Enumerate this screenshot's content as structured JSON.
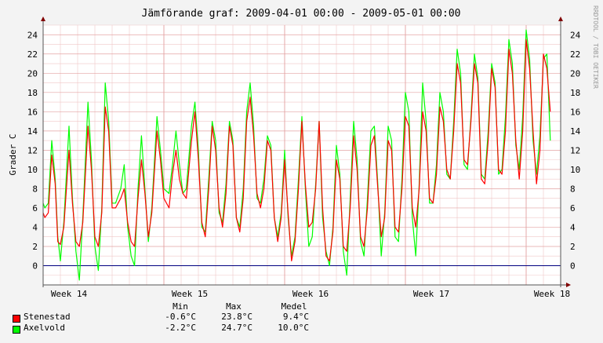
{
  "chart_data": {
    "type": "line",
    "title": "Jämförande graf: 2009-04-01 00:00 - 2009-05-01 00:00",
    "ylabel": "Grader C",
    "xlabel": "",
    "watermark": "RRDTOOL / TOBI OETIKER",
    "ylim": [
      -2,
      25
    ],
    "yticks": [
      0,
      2,
      4,
      6,
      8,
      10,
      12,
      14,
      16,
      18,
      20,
      22,
      24
    ],
    "xlim": [
      0,
      30
    ],
    "xticks": [
      {
        "day": 1.5,
        "label": "Week 14"
      },
      {
        "day": 8.5,
        "label": "Week 15"
      },
      {
        "day": 15.5,
        "label": "Week 16"
      },
      {
        "day": 22.5,
        "label": "Week 17"
      },
      {
        "day": 29.5,
        "label": "Week 18"
      }
    ],
    "day_gridlines": [
      0,
      7,
      14,
      21,
      28
    ],
    "grid": true,
    "series": [
      {
        "name": "Stenestad",
        "color": "#ff0000",
        "points": [
          [
            0,
            5.5
          ],
          [
            0.1,
            5.0
          ],
          [
            0.3,
            5.5
          ],
          [
            0.5,
            11.5
          ],
          [
            0.7,
            8.5
          ],
          [
            0.85,
            2.5
          ],
          [
            1.0,
            2.2
          ],
          [
            1.2,
            4.0
          ],
          [
            1.5,
            12.0
          ],
          [
            1.7,
            6.5
          ],
          [
            1.9,
            2.5
          ],
          [
            2.1,
            2.0
          ],
          [
            2.3,
            4.5
          ],
          [
            2.6,
            14.5
          ],
          [
            2.8,
            10.0
          ],
          [
            3.0,
            3.0
          ],
          [
            3.2,
            2.0
          ],
          [
            3.4,
            5.5
          ],
          [
            3.6,
            16.5
          ],
          [
            3.8,
            14.0
          ],
          [
            4.0,
            6.0
          ],
          [
            4.2,
            6.0
          ],
          [
            4.5,
            7.0
          ],
          [
            4.7,
            8.0
          ],
          [
            4.9,
            4.5
          ],
          [
            5.1,
            2.5
          ],
          [
            5.3,
            2.0
          ],
          [
            5.5,
            7.0
          ],
          [
            5.7,
            11.0
          ],
          [
            5.9,
            7.5
          ],
          [
            6.1,
            3.0
          ],
          [
            6.3,
            5.5
          ],
          [
            6.6,
            14.0
          ],
          [
            6.8,
            11.0
          ],
          [
            7.0,
            7.0
          ],
          [
            7.3,
            6.0
          ],
          [
            7.5,
            9.5
          ],
          [
            7.7,
            12.0
          ],
          [
            7.9,
            9.0
          ],
          [
            8.1,
            7.5
          ],
          [
            8.3,
            7.0
          ],
          [
            8.6,
            13.0
          ],
          [
            8.8,
            16.0
          ],
          [
            9.0,
            11.0
          ],
          [
            9.2,
            4.5
          ],
          [
            9.4,
            3.0
          ],
          [
            9.6,
            8.0
          ],
          [
            9.8,
            14.5
          ],
          [
            10.0,
            12.0
          ],
          [
            10.2,
            6.0
          ],
          [
            10.4,
            4.0
          ],
          [
            10.6,
            7.5
          ],
          [
            10.8,
            14.5
          ],
          [
            11.0,
            12.5
          ],
          [
            11.2,
            5.0
          ],
          [
            11.4,
            3.5
          ],
          [
            11.6,
            7.0
          ],
          [
            11.8,
            15.0
          ],
          [
            12.0,
            17.5
          ],
          [
            12.2,
            13.5
          ],
          [
            12.4,
            7.5
          ],
          [
            12.6,
            6.0
          ],
          [
            12.8,
            8.0
          ],
          [
            13.0,
            13.0
          ],
          [
            13.2,
            12.0
          ],
          [
            13.4,
            5.0
          ],
          [
            13.6,
            2.5
          ],
          [
            13.8,
            5.0
          ],
          [
            14.0,
            11.0
          ],
          [
            14.2,
            5.5
          ],
          [
            14.4,
            0.5
          ],
          [
            14.6,
            2.5
          ],
          [
            14.8,
            8.0
          ],
          [
            15.0,
            15.0
          ],
          [
            15.2,
            8.5
          ],
          [
            15.4,
            4.0
          ],
          [
            15.6,
            4.5
          ],
          [
            15.8,
            8.0
          ],
          [
            16.0,
            15.0
          ],
          [
            16.2,
            6.0
          ],
          [
            16.4,
            1.0
          ],
          [
            16.6,
            0.5
          ],
          [
            16.8,
            3.5
          ],
          [
            17.0,
            11.0
          ],
          [
            17.2,
            9.0
          ],
          [
            17.4,
            2.0
          ],
          [
            17.6,
            1.5
          ],
          [
            17.8,
            6.0
          ],
          [
            18.0,
            13.5
          ],
          [
            18.2,
            10.0
          ],
          [
            18.4,
            3.0
          ],
          [
            18.6,
            2.0
          ],
          [
            18.8,
            6.0
          ],
          [
            19.0,
            12.5
          ],
          [
            19.2,
            13.5
          ],
          [
            19.4,
            8.0
          ],
          [
            19.6,
            3.0
          ],
          [
            19.8,
            5.0
          ],
          [
            20.0,
            13.0
          ],
          [
            20.2,
            12.0
          ],
          [
            20.4,
            4.0
          ],
          [
            20.6,
            3.5
          ],
          [
            20.8,
            8.0
          ],
          [
            21.0,
            15.5
          ],
          [
            21.2,
            14.5
          ],
          [
            21.4,
            6.0
          ],
          [
            21.6,
            4.0
          ],
          [
            21.8,
            8.0
          ],
          [
            22.0,
            16.0
          ],
          [
            22.2,
            14.0
          ],
          [
            22.4,
            7.0
          ],
          [
            22.6,
            6.5
          ],
          [
            22.8,
            9.5
          ],
          [
            23.0,
            16.5
          ],
          [
            23.2,
            15.0
          ],
          [
            23.4,
            10.0
          ],
          [
            23.6,
            9.0
          ],
          [
            23.8,
            14.0
          ],
          [
            24.0,
            21.0
          ],
          [
            24.2,
            19.0
          ],
          [
            24.4,
            11.0
          ],
          [
            24.6,
            10.5
          ],
          [
            24.8,
            15.0
          ],
          [
            25.0,
            21.0
          ],
          [
            25.2,
            19.0
          ],
          [
            25.4,
            9.0
          ],
          [
            25.6,
            8.5
          ],
          [
            25.8,
            13.0
          ],
          [
            26.0,
            20.5
          ],
          [
            26.2,
            18.5
          ],
          [
            26.4,
            10.0
          ],
          [
            26.6,
            9.5
          ],
          [
            26.8,
            14.0
          ],
          [
            27.0,
            22.5
          ],
          [
            27.2,
            20.0
          ],
          [
            27.4,
            13.0
          ],
          [
            27.6,
            9.0
          ],
          [
            27.8,
            14.0
          ],
          [
            28.0,
            23.5
          ],
          [
            28.2,
            20.5
          ],
          [
            28.4,
            14.0
          ],
          [
            28.6,
            8.5
          ],
          [
            28.8,
            12.0
          ],
          [
            29.0,
            22.0
          ],
          [
            29.2,
            20.5
          ],
          [
            29.4,
            16.0
          ]
        ]
      },
      {
        "name": "Axelvold",
        "color": "#00ff00",
        "points": [
          [
            0,
            6.5
          ],
          [
            0.1,
            6.0
          ],
          [
            0.3,
            6.5
          ],
          [
            0.5,
            13.0
          ],
          [
            0.7,
            9.0
          ],
          [
            0.85,
            3.0
          ],
          [
            1.0,
            0.5
          ],
          [
            1.2,
            4.5
          ],
          [
            1.5,
            14.5
          ],
          [
            1.7,
            7.0
          ],
          [
            1.9,
            1.5
          ],
          [
            2.1,
            -1.5
          ],
          [
            2.3,
            5.0
          ],
          [
            2.6,
            17.0
          ],
          [
            2.8,
            11.0
          ],
          [
            3.0,
            2.0
          ],
          [
            3.2,
            -0.5
          ],
          [
            3.4,
            6.0
          ],
          [
            3.6,
            19.0
          ],
          [
            3.8,
            15.0
          ],
          [
            4.0,
            6.5
          ],
          [
            4.2,
            6.5
          ],
          [
            4.5,
            8.0
          ],
          [
            4.7,
            10.5
          ],
          [
            4.9,
            4.0
          ],
          [
            5.1,
            1.0
          ],
          [
            5.3,
            0.0
          ],
          [
            5.5,
            8.0
          ],
          [
            5.7,
            13.5
          ],
          [
            5.9,
            8.0
          ],
          [
            6.1,
            2.5
          ],
          [
            6.3,
            6.0
          ],
          [
            6.6,
            15.5
          ],
          [
            6.8,
            12.0
          ],
          [
            7.0,
            8.0
          ],
          [
            7.3,
            7.5
          ],
          [
            7.5,
            10.5
          ],
          [
            7.7,
            14.0
          ],
          [
            7.9,
            10.5
          ],
          [
            8.1,
            7.5
          ],
          [
            8.3,
            8.0
          ],
          [
            8.6,
            14.5
          ],
          [
            8.8,
            17.0
          ],
          [
            9.0,
            12.0
          ],
          [
            9.2,
            4.0
          ],
          [
            9.4,
            3.5
          ],
          [
            9.6,
            9.0
          ],
          [
            9.8,
            15.0
          ],
          [
            10.0,
            13.0
          ],
          [
            10.2,
            5.5
          ],
          [
            10.4,
            4.5
          ],
          [
            10.6,
            8.5
          ],
          [
            10.8,
            15.0
          ],
          [
            11.0,
            13.0
          ],
          [
            11.2,
            5.0
          ],
          [
            11.4,
            4.0
          ],
          [
            11.6,
            8.0
          ],
          [
            11.8,
            16.0
          ],
          [
            12.0,
            19.0
          ],
          [
            12.2,
            14.5
          ],
          [
            12.4,
            7.0
          ],
          [
            12.6,
            6.5
          ],
          [
            12.8,
            9.0
          ],
          [
            13.0,
            13.5
          ],
          [
            13.2,
            12.5
          ],
          [
            13.4,
            5.0
          ],
          [
            13.6,
            3.0
          ],
          [
            13.8,
            5.5
          ],
          [
            14.0,
            12.0
          ],
          [
            14.2,
            5.0
          ],
          [
            14.4,
            1.0
          ],
          [
            14.6,
            3.0
          ],
          [
            14.8,
            9.0
          ],
          [
            15.0,
            15.5
          ],
          [
            15.2,
            8.0
          ],
          [
            15.4,
            2.0
          ],
          [
            15.6,
            3.0
          ],
          [
            15.8,
            8.5
          ],
          [
            16.0,
            15.0
          ],
          [
            16.2,
            5.0
          ],
          [
            16.4,
            1.5
          ],
          [
            16.6,
            0.0
          ],
          [
            16.8,
            4.0
          ],
          [
            17.0,
            12.5
          ],
          [
            17.2,
            9.5
          ],
          [
            17.4,
            1.5
          ],
          [
            17.6,
            -1.0
          ],
          [
            17.8,
            7.0
          ],
          [
            18.0,
            15.0
          ],
          [
            18.2,
            11.0
          ],
          [
            18.4,
            2.5
          ],
          [
            18.6,
            1.0
          ],
          [
            18.8,
            7.0
          ],
          [
            19.0,
            14.0
          ],
          [
            19.2,
            14.5
          ],
          [
            19.4,
            8.5
          ],
          [
            19.6,
            1.0
          ],
          [
            19.8,
            5.5
          ],
          [
            20.0,
            14.5
          ],
          [
            20.2,
            13.0
          ],
          [
            20.4,
            3.0
          ],
          [
            20.6,
            2.5
          ],
          [
            20.8,
            9.0
          ],
          [
            21.0,
            18.0
          ],
          [
            21.2,
            16.0
          ],
          [
            21.4,
            5.0
          ],
          [
            21.6,
            1.0
          ],
          [
            21.8,
            8.5
          ],
          [
            22.0,
            19.0
          ],
          [
            22.2,
            15.0
          ],
          [
            22.4,
            6.5
          ],
          [
            22.6,
            6.5
          ],
          [
            22.8,
            10.5
          ],
          [
            23.0,
            18.0
          ],
          [
            23.2,
            16.0
          ],
          [
            23.4,
            9.5
          ],
          [
            23.6,
            9.0
          ],
          [
            23.8,
            15.0
          ],
          [
            24.0,
            22.5
          ],
          [
            24.2,
            20.0
          ],
          [
            24.4,
            10.5
          ],
          [
            24.6,
            10.0
          ],
          [
            24.8,
            15.5
          ],
          [
            25.0,
            22.0
          ],
          [
            25.2,
            19.5
          ],
          [
            25.4,
            9.5
          ],
          [
            25.6,
            9.0
          ],
          [
            25.8,
            14.0
          ],
          [
            26.0,
            21.0
          ],
          [
            26.2,
            19.0
          ],
          [
            26.4,
            9.5
          ],
          [
            26.6,
            10.0
          ],
          [
            26.8,
            15.5
          ],
          [
            27.0,
            23.5
          ],
          [
            27.2,
            21.0
          ],
          [
            27.4,
            12.5
          ],
          [
            27.6,
            10.0
          ],
          [
            27.8,
            15.5
          ],
          [
            28.0,
            24.5
          ],
          [
            28.2,
            21.5
          ],
          [
            28.4,
            13.0
          ],
          [
            28.6,
            9.5
          ],
          [
            28.8,
            13.5
          ],
          [
            29.0,
            21.5
          ],
          [
            29.2,
            22.0
          ],
          [
            29.4,
            13.0
          ]
        ]
      }
    ]
  },
  "legend": {
    "headers": {
      "min": "Min",
      "max": "Max",
      "mean": "Medel"
    },
    "rows": [
      {
        "name": "Stenestad",
        "color": "#ff0000",
        "min": "-0.6°C",
        "max": "23.8°C",
        "mean": "9.4°C"
      },
      {
        "name": "Axelvold",
        "color": "#00ff00",
        "min": "-2.2°C",
        "max": "24.7°C",
        "mean": "10.0°C"
      }
    ]
  }
}
